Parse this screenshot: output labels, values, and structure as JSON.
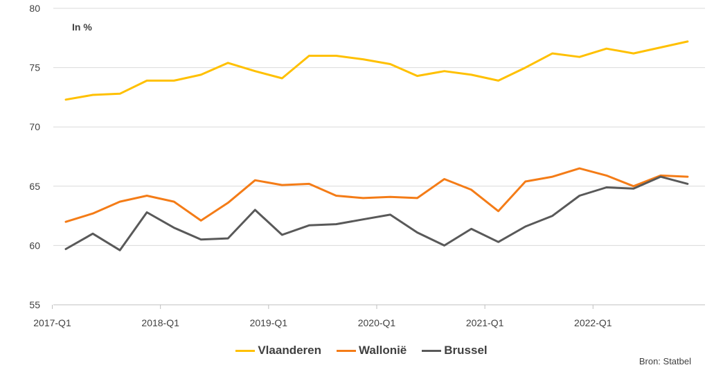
{
  "chart_data": {
    "type": "line",
    "title": "",
    "unit_label": "In %",
    "source": "Bron: Statbel",
    "ylim": [
      55,
      80
    ],
    "yticks": [
      55,
      60,
      65,
      70,
      75,
      80
    ],
    "x": [
      "2017-Q1",
      "2017-Q2",
      "2017-Q3",
      "2017-Q4",
      "2018-Q1",
      "2018-Q2",
      "2018-Q3",
      "2018-Q4",
      "2019-Q1",
      "2019-Q2",
      "2019-Q3",
      "2019-Q4",
      "2020-Q1",
      "2020-Q2",
      "2020-Q3",
      "2020-Q4",
      "2021-Q1",
      "2021-Q2",
      "2021-Q3",
      "2021-Q4",
      "2022-Q1",
      "2022-Q2",
      "2022-Q3",
      "2022-Q4"
    ],
    "xtick_labels": [
      "2017-Q1",
      "2018-Q1",
      "2019-Q1",
      "2020-Q1",
      "2021-Q1",
      "2022-Q1"
    ],
    "grid": true,
    "legend_position": "bottom",
    "series": [
      {
        "name": "Vlaanderen",
        "color": "#FFC000",
        "values": [
          72.3,
          72.7,
          72.8,
          73.9,
          73.9,
          74.4,
          75.4,
          74.7,
          74.1,
          76.0,
          76.0,
          75.7,
          75.3,
          74.3,
          74.7,
          74.4,
          73.9,
          75.0,
          76.2,
          75.9,
          76.6,
          76.2,
          76.7,
          77.2
        ]
      },
      {
        "name": "Wallonië",
        "color": "#F47C17",
        "values": [
          62.0,
          62.7,
          63.7,
          64.2,
          63.7,
          62.1,
          63.6,
          65.5,
          65.1,
          65.2,
          64.2,
          64.0,
          64.1,
          64.0,
          65.6,
          64.7,
          62.9,
          65.4,
          65.8,
          66.5,
          65.9,
          65.0,
          65.9,
          65.8
        ]
      },
      {
        "name": "Brussel",
        "color": "#595959",
        "values": [
          59.7,
          61.0,
          59.6,
          62.8,
          61.5,
          60.5,
          60.6,
          63.0,
          60.9,
          61.7,
          61.8,
          62.2,
          62.6,
          61.1,
          60.0,
          61.4,
          60.3,
          61.6,
          62.5,
          64.2,
          64.9,
          64.8,
          65.8,
          65.2
        ]
      }
    ]
  }
}
